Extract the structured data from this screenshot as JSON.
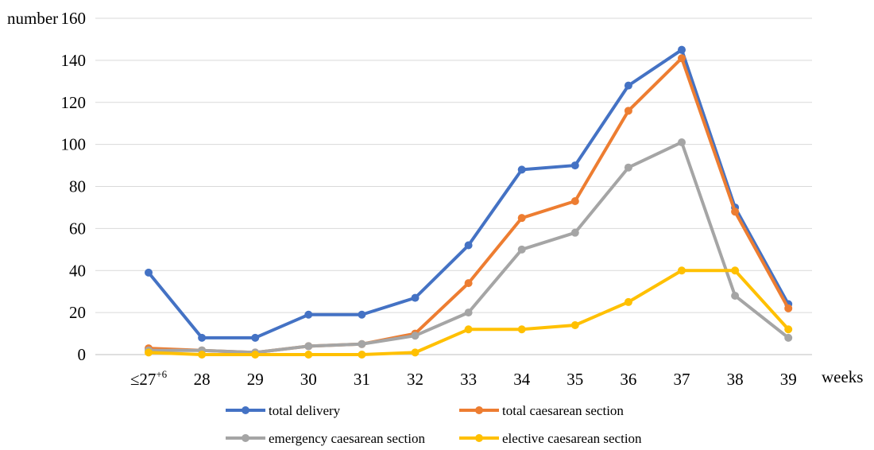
{
  "chart_data": {
    "type": "line",
    "ylabel": "number",
    "xlabel": "weeks",
    "ylim": [
      0,
      160
    ],
    "yticks": [
      0,
      20,
      40,
      60,
      80,
      100,
      120,
      140,
      160
    ],
    "grid": true,
    "legend_position": "bottom",
    "categories": [
      "≤27",
      "28",
      "29",
      "30",
      "31",
      "32",
      "33",
      "34",
      "35",
      "36",
      "37",
      "38",
      "39"
    ],
    "first_category_superscript": "+6",
    "series": [
      {
        "name": "total delivery",
        "color": "#4472C4",
        "values": [
          39,
          8,
          8,
          19,
          19,
          27,
          52,
          88,
          90,
          128,
          145,
          70,
          24
        ]
      },
      {
        "name": "total caesarean section",
        "color": "#ED7D31",
        "values": [
          3,
          2,
          1,
          4,
          5,
          10,
          34,
          65,
          73,
          116,
          141,
          68,
          22
        ]
      },
      {
        "name": "emergency caesarean section",
        "color": "#A5A5A5",
        "values": [
          2,
          2,
          1,
          4,
          5,
          9,
          20,
          50,
          58,
          89,
          101,
          28,
          8
        ]
      },
      {
        "name": "elective caesarean section",
        "color": "#FFC000",
        "values": [
          1,
          0,
          0,
          0,
          0,
          1,
          12,
          12,
          14,
          25,
          40,
          40,
          12
        ]
      }
    ]
  }
}
